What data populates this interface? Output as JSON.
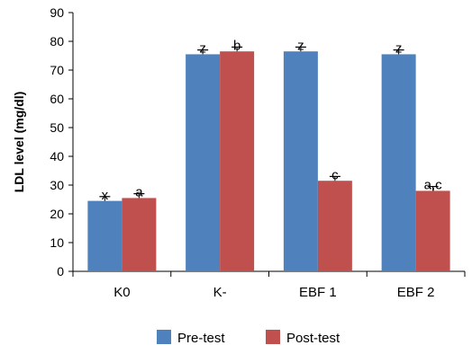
{
  "chart_data": {
    "type": "bar",
    "title": "",
    "xlabel": "",
    "ylabel": "LDL level (mg/dl)",
    "ylim": [
      0,
      90
    ],
    "yticks": [
      0,
      10,
      20,
      30,
      40,
      50,
      60,
      70,
      80,
      90
    ],
    "grid": false,
    "legend_position": "bottom",
    "categories": [
      "K0",
      "K-",
      "EBF 1",
      "EBF 2"
    ],
    "series": [
      {
        "name": "Pre-test",
        "color": "#4f81bd",
        "values": [
          24.5,
          75.5,
          76.5,
          75.5
        ],
        "errors": [
          1.5,
          1.5,
          1.5,
          1.5
        ],
        "labels": [
          "x",
          "z",
          "z",
          "z"
        ]
      },
      {
        "name": "Post-test",
        "color": "#c0504d",
        "values": [
          25.5,
          76.5,
          31.5,
          28
        ],
        "errors": [
          1.5,
          1.5,
          1.5,
          1.5
        ],
        "labels": [
          "a",
          "b",
          "c",
          "a,c"
        ]
      }
    ]
  }
}
